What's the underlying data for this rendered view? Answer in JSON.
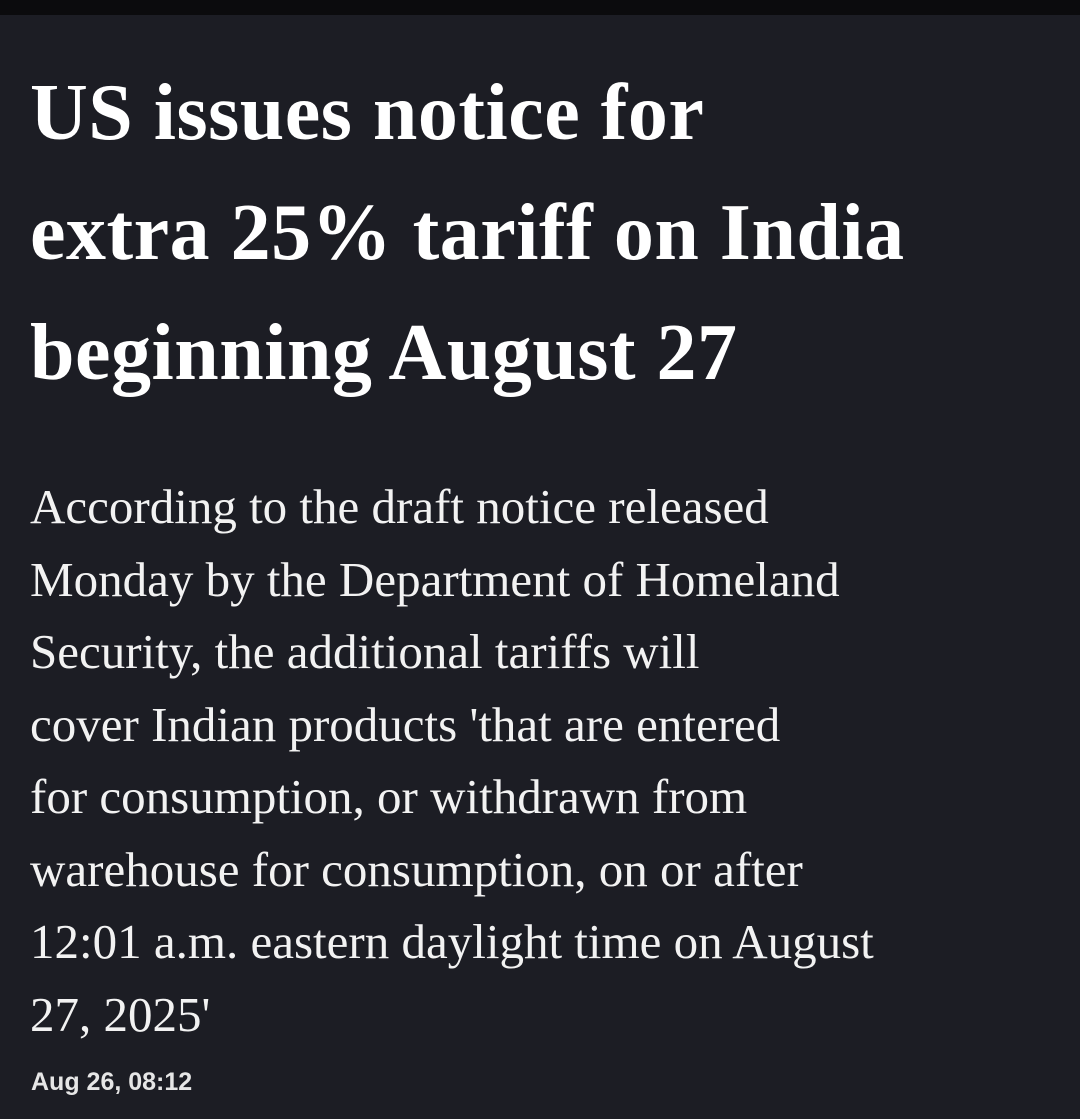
{
  "article": {
    "headline_lines": [
      "US issues notice for",
      "extra 25% tariff on India",
      "beginning August 27"
    ],
    "body_lines": [
      "According to the draft notice released",
      "Monday by the Department of Homeland",
      "Security, the additional tariffs will",
      "cover Indian products 'that are entered",
      "for consumption, or withdrawn from",
      "warehouse for consumption, on or after",
      "12:01 a.m. eastern daylight time on August",
      "27, 2025'"
    ],
    "timestamp": "Aug 26, 08:12"
  }
}
